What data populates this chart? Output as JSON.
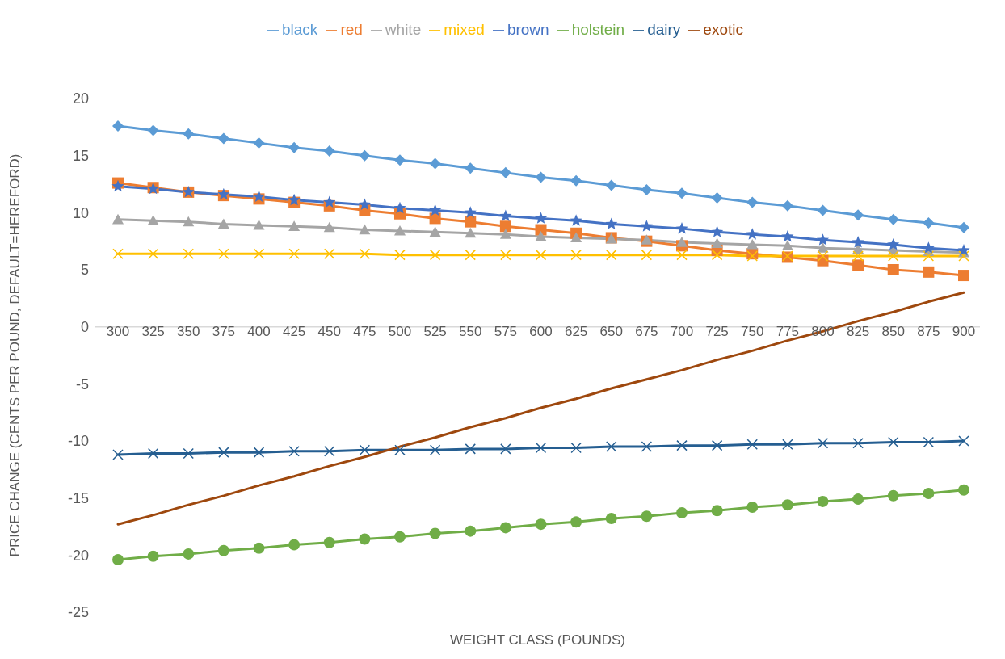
{
  "chart_data": {
    "type": "line",
    "xlabel": "WEIGHT CLASS (POUNDS)",
    "ylabel": "PRICE CHANGE (CENTS PER POUND, DEFAULT=HEREFORD)",
    "categories": [
      "300",
      "325",
      "350",
      "375",
      "400",
      "425",
      "450",
      "475",
      "500",
      "525",
      "550",
      "575",
      "600",
      "625",
      "650",
      "675",
      "700",
      "725",
      "750",
      "775",
      "800",
      "825",
      "850",
      "875",
      "900"
    ],
    "ylim": [
      -25,
      20
    ],
    "yticks": [
      -25,
      -20,
      -15,
      -10,
      -5,
      0,
      5,
      10,
      15,
      20
    ],
    "grid": false,
    "legend": "top",
    "series": [
      {
        "name": "black",
        "color": "#5b9bd5",
        "marker": "diamond",
        "values": [
          17.6,
          17.2,
          16.9,
          16.5,
          16.1,
          15.7,
          15.4,
          15.0,
          14.6,
          14.3,
          13.9,
          13.5,
          13.1,
          12.8,
          12.4,
          12.0,
          11.7,
          11.3,
          10.9,
          10.6,
          10.2,
          9.8,
          9.4,
          9.1,
          8.7
        ]
      },
      {
        "name": "red",
        "color": "#ed7d31",
        "marker": "square",
        "values": [
          12.6,
          12.2,
          11.8,
          11.5,
          11.2,
          10.9,
          10.6,
          10.2,
          9.9,
          9.5,
          9.2,
          8.8,
          8.5,
          8.2,
          7.8,
          7.5,
          7.1,
          6.7,
          6.4,
          6.1,
          5.8,
          5.4,
          5.0,
          4.8,
          4.5
        ]
      },
      {
        "name": "white",
        "color": "#a5a5a5",
        "marker": "triangle",
        "values": [
          9.4,
          9.3,
          9.2,
          9.0,
          8.9,
          8.8,
          8.7,
          8.5,
          8.4,
          8.3,
          8.2,
          8.1,
          7.9,
          7.8,
          7.7,
          7.6,
          7.4,
          7.3,
          7.2,
          7.1,
          6.9,
          6.8,
          6.7,
          6.6,
          6.5
        ]
      },
      {
        "name": "mixed",
        "color": "#ffc000",
        "marker": "cross",
        "values": [
          6.4,
          6.4,
          6.4,
          6.4,
          6.4,
          6.4,
          6.4,
          6.4,
          6.3,
          6.3,
          6.3,
          6.3,
          6.3,
          6.3,
          6.3,
          6.3,
          6.3,
          6.3,
          6.2,
          6.2,
          6.2,
          6.2,
          6.2,
          6.2,
          6.2
        ]
      },
      {
        "name": "brown",
        "color": "#4472c4",
        "marker": "star",
        "values": [
          12.3,
          12.1,
          11.8,
          11.6,
          11.4,
          11.1,
          10.9,
          10.7,
          10.4,
          10.2,
          10.0,
          9.7,
          9.5,
          9.3,
          9.0,
          8.8,
          8.6,
          8.3,
          8.1,
          7.9,
          7.6,
          7.4,
          7.2,
          6.9,
          6.7
        ]
      },
      {
        "name": "holstein",
        "color": "#70ad47",
        "marker": "circle",
        "values": [
          -20.4,
          -20.1,
          -19.9,
          -19.6,
          -19.4,
          -19.1,
          -18.9,
          -18.6,
          -18.4,
          -18.1,
          -17.9,
          -17.6,
          -17.3,
          -17.1,
          -16.8,
          -16.6,
          -16.3,
          -16.1,
          -15.8,
          -15.6,
          -15.3,
          -15.1,
          -14.8,
          -14.6,
          -14.3
        ]
      },
      {
        "name": "dairy",
        "color": "#255e91",
        "marker": "cross",
        "values": [
          -11.2,
          -11.1,
          -11.1,
          -11.0,
          -11.0,
          -10.9,
          -10.9,
          -10.8,
          -10.8,
          -10.8,
          -10.7,
          -10.7,
          -10.6,
          -10.6,
          -10.5,
          -10.5,
          -10.4,
          -10.4,
          -10.3,
          -10.3,
          -10.2,
          -10.2,
          -10.1,
          -10.1,
          -10.0
        ]
      },
      {
        "name": "exotic",
        "color": "#9e480e",
        "marker": "none",
        "values": [
          -17.3,
          -16.5,
          -15.6,
          -14.8,
          -13.9,
          -13.1,
          -12.2,
          -11.4,
          -10.5,
          -9.7,
          -8.8,
          -8.0,
          -7.1,
          -6.3,
          -5.4,
          -4.6,
          -3.8,
          -2.9,
          -2.1,
          -1.2,
          -0.4,
          0.5,
          1.3,
          2.2,
          3.0
        ]
      }
    ]
  }
}
